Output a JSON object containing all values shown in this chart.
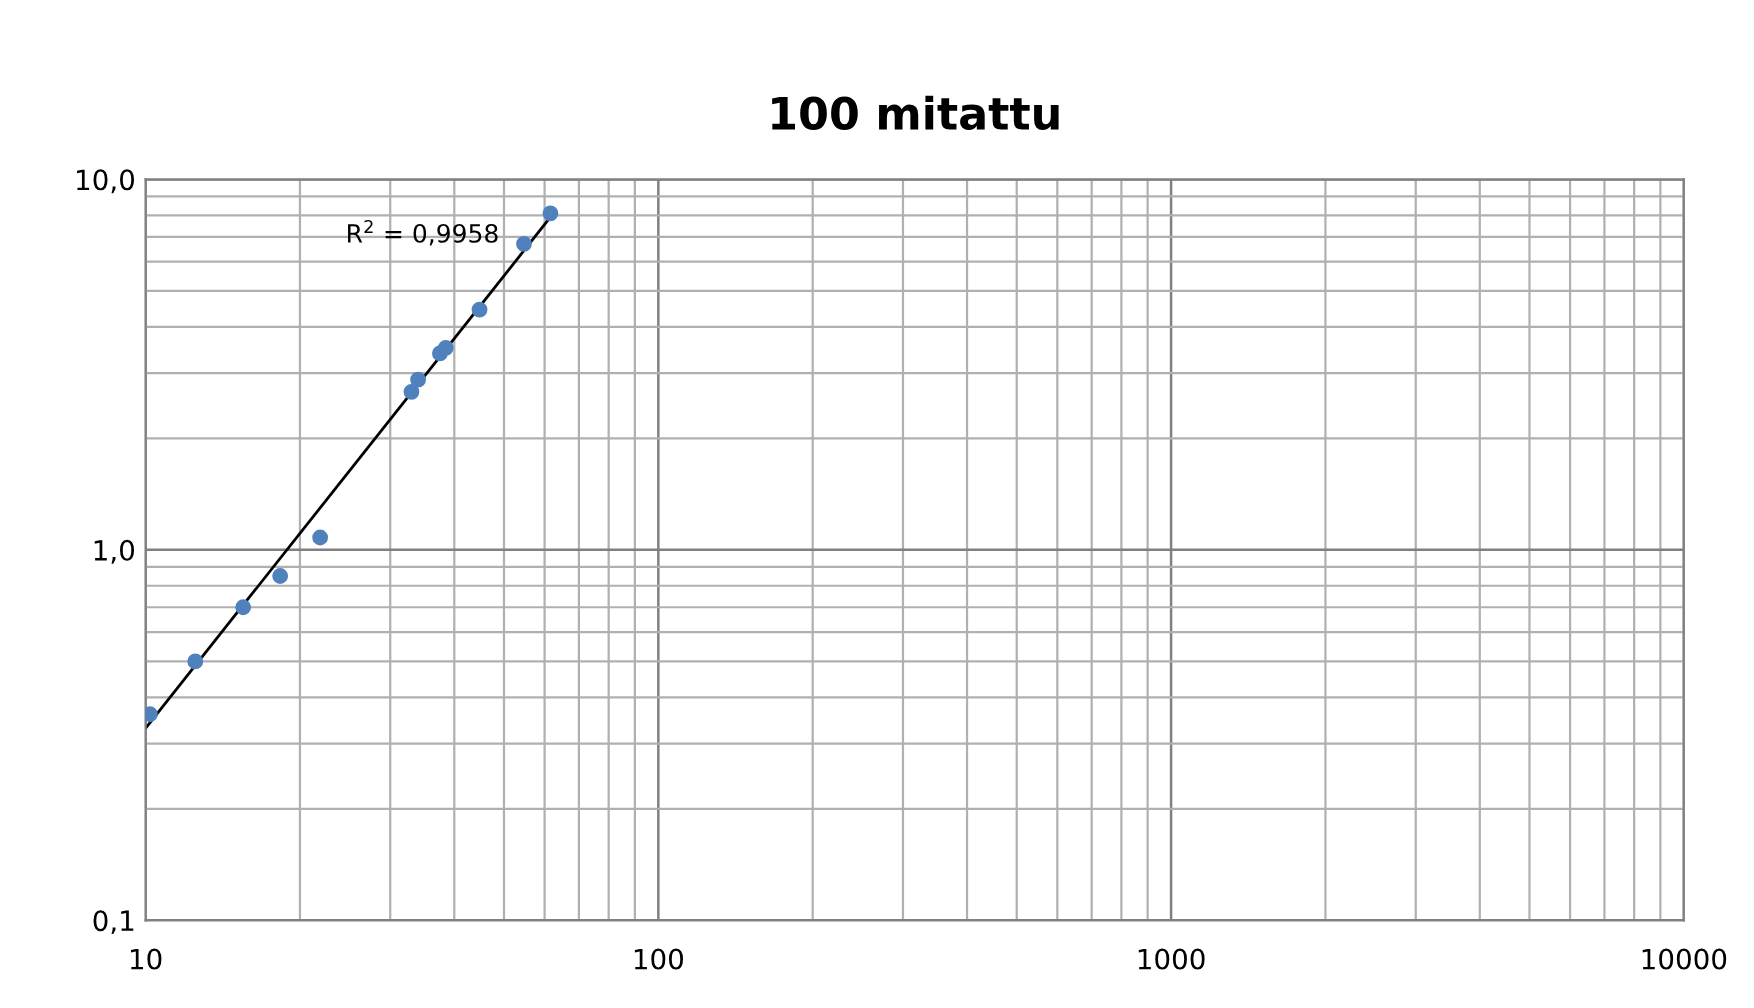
{
  "chart_data": {
    "type": "scatter",
    "title": "100 mitattu",
    "log": "xy",
    "grid": true,
    "legend": false,
    "marker": "circle",
    "xlim": [
      10,
      10000
    ],
    "xticks": [
      10,
      100,
      1000,
      10000
    ],
    "ylim": [
      0.1,
      10
    ],
    "yticks": [
      {
        "value": 0.1,
        "label": "0,1"
      },
      {
        "value": 1,
        "label": "1,0"
      },
      {
        "value": 10,
        "label": "10,0"
      }
    ],
    "series": [
      {
        "color": "#4f81bd",
        "x": [
          10.2,
          12.5,
          15.5,
          18.3,
          21.9,
          33,
          34,
          37.5,
          38.5,
          44.8,
          54.7,
          61.6
        ],
        "values": [
          0.36,
          0.5,
          0.7,
          0.85,
          1.08,
          2.67,
          2.88,
          3.39,
          3.51,
          4.45,
          6.7,
          8.1
        ]
      },
      {
        "type": "line",
        "color": "#000000",
        "marker": "none",
        "line_style": "solid",
        "x": [
          10,
          62
        ],
        "values": [
          0.33,
          8.0
        ]
      }
    ],
    "annotations": [
      "R$^{2}$ = 0,9958"
    ]
  }
}
